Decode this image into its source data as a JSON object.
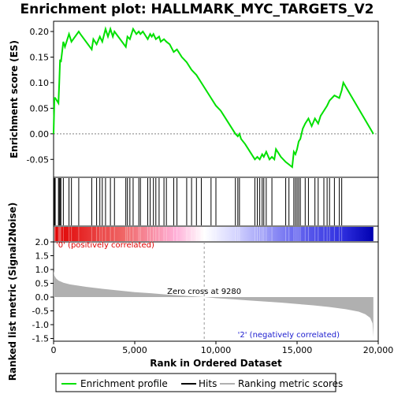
{
  "title": "Enrichment plot: HALLMARK_MYC_TARGETS_V2",
  "colors": {
    "enrichment": "#00e000",
    "hits": "#000000",
    "metric": "#b0b0b0",
    "positive_text": "#e00000",
    "negative_text": "#2020d0"
  },
  "chart_data": [
    {
      "type": "line",
      "panel": "enrichment",
      "ylabel": "Enrichment score (ES)",
      "ylim": [
        -0.085,
        0.22
      ],
      "yticks": [
        "0.20",
        "0.15",
        "0.10",
        "0.05",
        "0.00",
        "-0.05"
      ],
      "ytick_values": [
        0.2,
        0.15,
        0.1,
        0.05,
        0.0,
        -0.05
      ],
      "xlim": [
        0,
        20000
      ],
      "series": [
        {
          "name": "Enrichment profile",
          "x": [
            0,
            50,
            100,
            300,
            350,
            400,
            450,
            600,
            700,
            950,
            1100,
            1550,
            1650,
            2350,
            2450,
            2650,
            2850,
            3000,
            3200,
            3350,
            3500,
            3650,
            3750,
            4450,
            4550,
            4700,
            4900,
            5100,
            5250,
            5350,
            5500,
            5800,
            5950,
            6050,
            6150,
            6300,
            6500,
            6600,
            6800,
            6950,
            7150,
            7400,
            7600,
            7900,
            8200,
            8500,
            8800,
            9100,
            9400,
            9700,
            10000,
            10300,
            10600,
            10900,
            11200,
            11350,
            11450,
            11550,
            11800,
            12100,
            12400,
            12550,
            12700,
            12850,
            12950,
            13100,
            13300,
            13450,
            13600,
            13700,
            14000,
            14300,
            14500,
            14700,
            14800,
            14900,
            15000,
            15100,
            15200,
            15350,
            15500,
            15700,
            15900,
            16100,
            16300,
            16450,
            16650,
            16850,
            17000,
            17300,
            17600,
            17750,
            17850,
            19700
          ],
          "y": [
            0.0,
            0.07,
            0.07,
            0.06,
            0.1,
            0.145,
            0.14,
            0.18,
            0.17,
            0.195,
            0.18,
            0.2,
            0.195,
            0.165,
            0.185,
            0.175,
            0.19,
            0.18,
            0.205,
            0.19,
            0.205,
            0.19,
            0.2,
            0.17,
            0.19,
            0.185,
            0.205,
            0.195,
            0.2,
            0.195,
            0.2,
            0.185,
            0.195,
            0.19,
            0.195,
            0.185,
            0.19,
            0.18,
            0.185,
            0.18,
            0.175,
            0.16,
            0.165,
            0.15,
            0.14,
            0.125,
            0.115,
            0.1,
            0.085,
            0.07,
            0.055,
            0.045,
            0.03,
            0.015,
            0.0,
            -0.005,
            0.0,
            -0.01,
            -0.02,
            -0.035,
            -0.05,
            -0.045,
            -0.05,
            -0.04,
            -0.045,
            -0.035,
            -0.05,
            -0.045,
            -0.05,
            -0.03,
            -0.045,
            -0.055,
            -0.06,
            -0.065,
            -0.035,
            -0.04,
            -0.03,
            -0.015,
            -0.01,
            0.01,
            0.02,
            0.03,
            0.015,
            0.03,
            0.02,
            0.035,
            0.045,
            0.055,
            0.065,
            0.075,
            0.07,
            0.085,
            0.1,
            0.0
          ]
        }
      ]
    },
    {
      "type": "scatter",
      "panel": "hits",
      "series": [
        {
          "name": "Hits",
          "x": [
            50,
            100,
            300,
            350,
            400,
            450,
            600,
            950,
            1100,
            1550,
            2350,
            2650,
            2850,
            3000,
            3200,
            3500,
            3750,
            4450,
            4550,
            4700,
            4900,
            5250,
            5350,
            5800,
            5950,
            6150,
            6300,
            6500,
            6800,
            6950,
            7400,
            7600,
            8200,
            8500,
            8800,
            9100,
            9700,
            10000,
            11200,
            11350,
            11450,
            12400,
            12550,
            12700,
            12850,
            12950,
            13100,
            13450,
            14300,
            14500,
            14800,
            14900,
            15000,
            15100,
            15200,
            15500,
            15700,
            16100,
            16300,
            16650,
            16850,
            17000,
            17300,
            17600,
            17750
          ]
        }
      ]
    },
    {
      "type": "area",
      "panel": "ranked_metric",
      "ylabel": "Ranked list metric (Signal2Noise)",
      "xlabel": "Rank in Ordered Dataset",
      "ylim": [
        -1.6,
        2.0
      ],
      "yticks": [
        "2.0",
        "1.5",
        "1.0",
        "0.5",
        "0.0",
        "-0.5",
        "-1.0",
        "-1.5"
      ],
      "ytick_values": [
        2.0,
        1.5,
        1.0,
        0.5,
        0.0,
        -0.5,
        -1.0,
        -1.5
      ],
      "xlim": [
        0,
        20000
      ],
      "xticks": [
        "0",
        "5,000",
        "10,000",
        "15,000",
        "20,000"
      ],
      "xtick_values": [
        0,
        5000,
        10000,
        15000,
        20000
      ],
      "series": [
        {
          "name": "Ranking metric scores",
          "x": [
            0,
            50,
            150,
            300,
            600,
            1000,
            2000,
            3000,
            4000,
            5000,
            6000,
            7000,
            8000,
            9280,
            10000,
            11000,
            12000,
            13000,
            14000,
            15000,
            16000,
            17000,
            18000,
            18800,
            19200,
            19500,
            19650,
            19700
          ],
          "y": [
            0.95,
            0.78,
            0.68,
            0.6,
            0.52,
            0.46,
            0.37,
            0.3,
            0.24,
            0.18,
            0.14,
            0.09,
            0.05,
            0.0,
            -0.04,
            -0.08,
            -0.12,
            -0.16,
            -0.2,
            -0.25,
            -0.3,
            -0.36,
            -0.44,
            -0.53,
            -0.62,
            -0.75,
            -0.95,
            -1.45
          ]
        }
      ],
      "annotations": {
        "zero_cross": "Zero cross at 9280",
        "zero_cross_x": 9280,
        "positive": "'0' (positively correlated)",
        "negative": "'2' (negatively correlated)"
      }
    }
  ],
  "legend": {
    "items": [
      {
        "label": "Enrichment profile",
        "color": "#00e000"
      },
      {
        "label": "Hits",
        "color": "#000000"
      },
      {
        "label": "Ranking metric scores",
        "color": "#b0b0b0"
      }
    ]
  }
}
